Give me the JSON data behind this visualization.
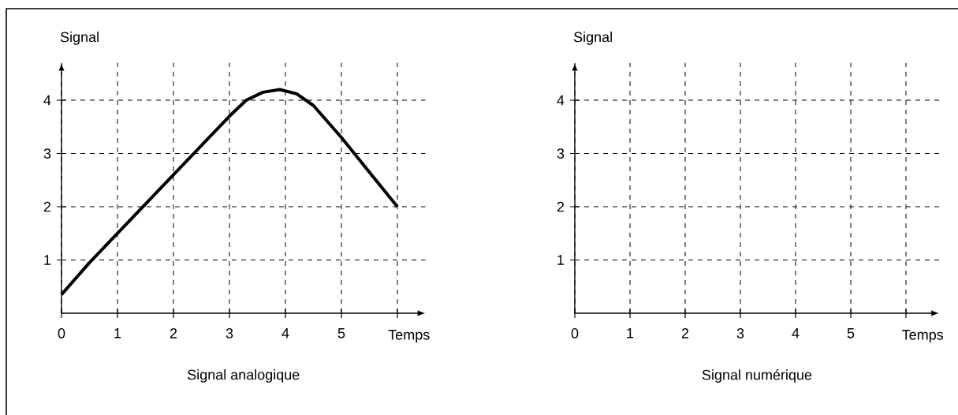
{
  "chart_data": [
    {
      "type": "line",
      "title": "Signal analogique",
      "xlabel": "Temps",
      "ylabel": "Signal",
      "x": [
        0,
        0.5,
        1,
        1.5,
        2,
        2.5,
        3,
        3.3,
        3.6,
        3.9,
        4.2,
        4.5,
        5,
        5.5,
        6
      ],
      "values": [
        0.35,
        0.95,
        1.5,
        2.05,
        2.6,
        3.15,
        3.7,
        4.0,
        4.15,
        4.2,
        4.12,
        3.9,
        3.3,
        2.65,
        2.0
      ],
      "color": "#000000",
      "xlim": [
        0,
        6.5
      ],
      "ylim": [
        0,
        4.7
      ],
      "xticks": [
        0,
        1,
        2,
        3,
        4,
        5,
        {
          "value": 6,
          "label": null
        }
      ],
      "yticks": [
        1,
        2,
        3,
        4
      ],
      "grid": true
    },
    {
      "type": "line",
      "title": "Signal numérique",
      "xlabel": "Temps",
      "ylabel": "Signal",
      "xlim": [
        0,
        6.6
      ],
      "ylim": [
        0,
        4.7
      ],
      "xticks": [
        0,
        1,
        2,
        3,
        4,
        5,
        {
          "value": 6,
          "label": null
        }
      ],
      "yticks": [
        1,
        2,
        3,
        4
      ],
      "grid": true
    }
  ]
}
